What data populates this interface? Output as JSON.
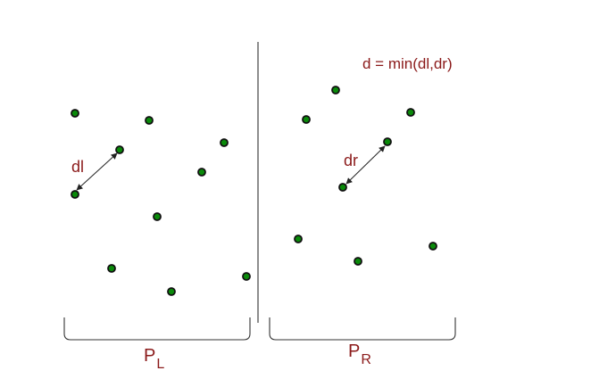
{
  "formula": "d = min(dl,dr)",
  "labels": {
    "left_distance": "dl",
    "right_distance": "dr"
  },
  "partitions": {
    "left": {
      "letter": "P",
      "subscript": "L"
    },
    "right": {
      "letter": "P",
      "subscript": "R"
    }
  },
  "colors": {
    "label": "#8b1a1a",
    "point_fill": "#0a8a0a",
    "point_stroke": "#111111",
    "line": "#333333"
  },
  "points": {
    "left_count": 10,
    "right_count": 8
  }
}
